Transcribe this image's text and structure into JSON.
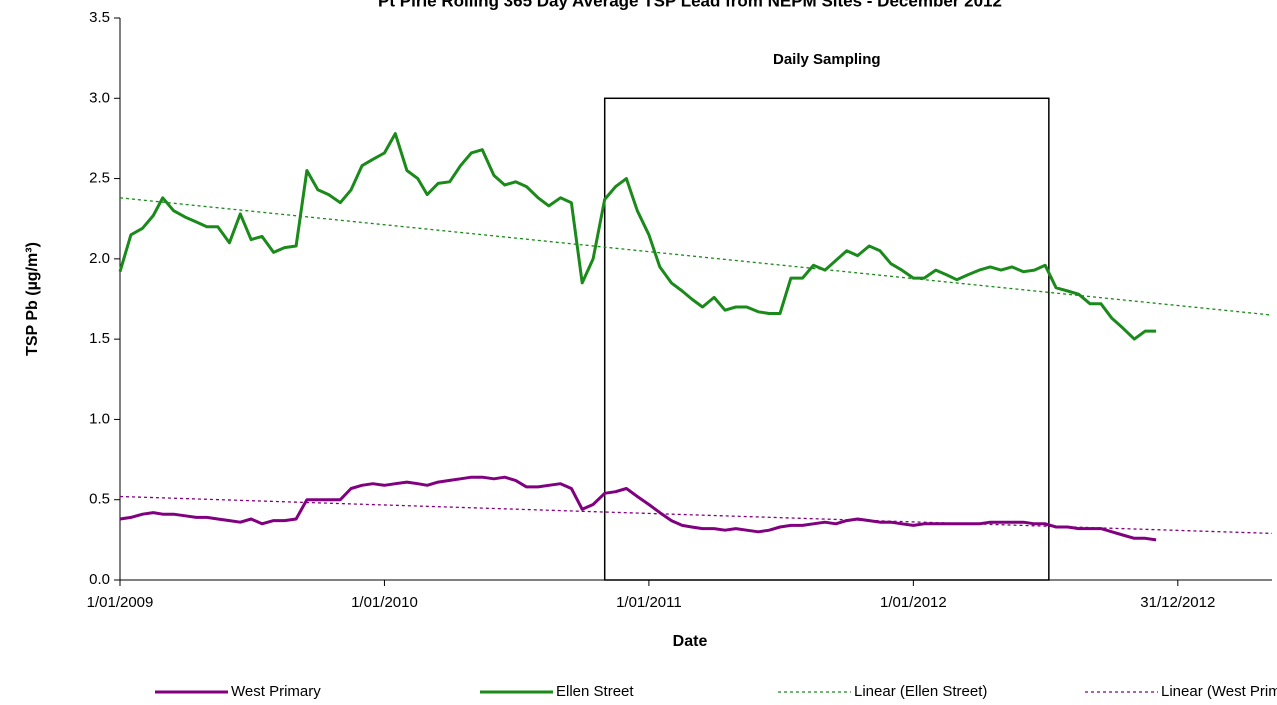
{
  "chart_data": {
    "type": "line",
    "title": "Pt Pirie Rolling 365 Day Average TSP Lead from NEPM Sites - December 2012",
    "x_label": "Date",
    "y_label": "TSP Pb (µg/m³)",
    "annotation": {
      "text": "Daily Sampling",
      "x": [
        "2010-11-01",
        "2012-07-06"
      ],
      "y": 3.0
    },
    "xlim": [
      "2009-01-01",
      "2013-05-10"
    ],
    "xticks": [
      {
        "value": "2009-01-01",
        "label": "1/01/2009"
      },
      {
        "value": "2010-01-01",
        "label": "1/01/2010"
      },
      {
        "value": "2011-01-01",
        "label": "1/01/2011"
      },
      {
        "value": "2012-01-01",
        "label": "1/01/2012"
      },
      {
        "value": "2012-12-31",
        "label": "31/12/2012"
      }
    ],
    "ylim": [
      0,
      3.5
    ],
    "yticks": [
      {
        "value": 0,
        "label": "0.0"
      },
      {
        "value": 0.5,
        "label": "0.5"
      },
      {
        "value": 1,
        "label": "1.0"
      },
      {
        "value": 1.5,
        "label": "1.5"
      },
      {
        "value": 2,
        "label": "2.0"
      },
      {
        "value": 2.5,
        "label": "2.5"
      },
      {
        "value": 3,
        "label": "3.0"
      },
      {
        "value": 3.5,
        "label": "3.5"
      }
    ],
    "x": [
      "2009-01-01",
      "2009-01-16",
      "2009-02-01",
      "2009-02-16",
      "2009-03-01",
      "2009-03-16",
      "2009-04-01",
      "2009-04-16",
      "2009-05-01",
      "2009-05-16",
      "2009-06-01",
      "2009-06-16",
      "2009-07-01",
      "2009-07-16",
      "2009-08-01",
      "2009-08-16",
      "2009-09-01",
      "2009-09-16",
      "2009-10-01",
      "2009-10-16",
      "2009-11-01",
      "2009-11-16",
      "2009-12-01",
      "2009-12-16",
      "2010-01-01",
      "2010-01-16",
      "2010-02-01",
      "2010-02-16",
      "2010-03-01",
      "2010-03-16",
      "2010-04-01",
      "2010-04-16",
      "2010-05-01",
      "2010-05-16",
      "2010-06-01",
      "2010-06-16",
      "2010-07-01",
      "2010-07-16",
      "2010-08-01",
      "2010-08-16",
      "2010-09-01",
      "2010-09-16",
      "2010-10-01",
      "2010-10-16",
      "2010-11-01",
      "2010-11-16",
      "2010-12-01",
      "2010-12-16",
      "2011-01-01",
      "2011-01-16",
      "2011-02-01",
      "2011-02-16",
      "2011-03-01",
      "2011-03-16",
      "2011-04-01",
      "2011-04-16",
      "2011-05-01",
      "2011-05-16",
      "2011-06-01",
      "2011-06-16",
      "2011-07-01",
      "2011-07-16",
      "2011-08-01",
      "2011-08-16",
      "2011-09-01",
      "2011-09-16",
      "2011-10-01",
      "2011-10-16",
      "2011-11-01",
      "2011-11-16",
      "2011-12-01",
      "2011-12-16",
      "2012-01-01",
      "2012-01-16",
      "2012-02-01",
      "2012-02-16",
      "2012-03-01",
      "2012-03-16",
      "2012-04-01",
      "2012-04-16",
      "2012-05-01",
      "2012-05-16",
      "2012-06-01",
      "2012-06-16",
      "2012-07-01",
      "2012-07-16",
      "2012-08-01",
      "2012-08-16",
      "2012-09-01",
      "2012-09-16",
      "2012-10-01",
      "2012-10-16",
      "2012-11-01",
      "2012-11-16",
      "2012-12-01"
    ],
    "series": [
      {
        "name": "West Primary",
        "color": "#800080",
        "width": 3,
        "dash": null,
        "values": [
          0.38,
          0.39,
          0.41,
          0.42,
          0.41,
          0.41,
          0.4,
          0.39,
          0.39,
          0.38,
          0.37,
          0.36,
          0.38,
          0.35,
          0.37,
          0.37,
          0.38,
          0.5,
          0.5,
          0.5,
          0.5,
          0.57,
          0.59,
          0.6,
          0.59,
          0.6,
          0.61,
          0.6,
          0.59,
          0.61,
          0.62,
          0.63,
          0.64,
          0.64,
          0.63,
          0.64,
          0.62,
          0.58,
          0.58,
          0.59,
          0.6,
          0.57,
          0.44,
          0.47,
          0.54,
          0.55,
          0.57,
          0.52,
          0.47,
          0.42,
          0.37,
          0.34,
          0.33,
          0.32,
          0.32,
          0.31,
          0.32,
          0.31,
          0.3,
          0.31,
          0.33,
          0.34,
          0.34,
          0.35,
          0.36,
          0.35,
          0.37,
          0.38,
          0.37,
          0.36,
          0.36,
          0.35,
          0.34,
          0.35,
          0.35,
          0.35,
          0.35,
          0.35,
          0.35,
          0.36,
          0.36,
          0.36,
          0.36,
          0.35,
          0.35,
          0.33,
          0.33,
          0.32,
          0.32,
          0.32,
          0.3,
          0.28,
          0.26,
          0.26,
          0.25
        ]
      },
      {
        "name": "Ellen Street",
        "color": "#1a8a1a",
        "width": 3,
        "dash": null,
        "values": [
          1.92,
          2.15,
          2.19,
          2.27,
          2.38,
          2.3,
          2.26,
          2.23,
          2.2,
          2.2,
          2.1,
          2.28,
          2.12,
          2.14,
          2.04,
          2.07,
          2.08,
          2.55,
          2.43,
          2.4,
          2.35,
          2.43,
          2.58,
          2.62,
          2.66,
          2.78,
          2.55,
          2.5,
          2.4,
          2.47,
          2.48,
          2.58,
          2.66,
          2.68,
          2.52,
          2.46,
          2.48,
          2.45,
          2.38,
          2.33,
          2.38,
          2.35,
          1.85,
          2.0,
          2.37,
          2.45,
          2.5,
          2.3,
          2.15,
          1.95,
          1.85,
          1.8,
          1.75,
          1.7,
          1.76,
          1.68,
          1.7,
          1.7,
          1.67,
          1.66,
          1.66,
          1.88,
          1.88,
          1.96,
          1.93,
          1.99,
          2.05,
          2.02,
          2.08,
          2.05,
          1.97,
          1.93,
          1.88,
          1.88,
          1.93,
          1.9,
          1.87,
          1.9,
          1.93,
          1.95,
          1.93,
          1.95,
          1.92,
          1.93,
          1.96,
          1.82,
          1.8,
          1.78,
          1.72,
          1.72,
          1.63,
          1.57,
          1.5,
          1.55,
          1.55
        ]
      },
      {
        "name": "Linear (Ellen Street)",
        "color": "#1a8a1a",
        "width": 1.3,
        "dash": "3,3",
        "x": [
          "2009-01-01",
          "2013-05-10"
        ],
        "values": [
          2.38,
          1.65
        ]
      },
      {
        "name": "Linear (West Primary)",
        "color": "#800080",
        "width": 1.3,
        "dash": "3,3",
        "x": [
          "2009-01-01",
          "2013-05-10"
        ],
        "values": [
          0.52,
          0.29
        ]
      }
    ]
  }
}
